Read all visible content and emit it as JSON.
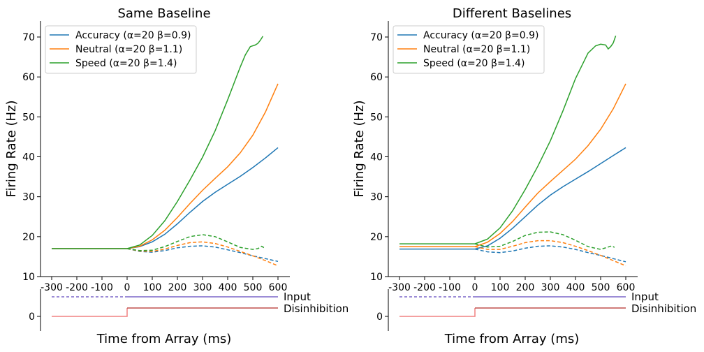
{
  "chart_data": [
    {
      "type": "line",
      "title": "Same Baseline",
      "xlabel": "Time from Array (ms)",
      "ylabel": "Firing Rate (Hz)",
      "xlim": [
        -350,
        640
      ],
      "ylim": [
        10,
        74
      ],
      "xticks": [
        -300,
        -200,
        -100,
        0,
        100,
        200,
        300,
        400,
        500,
        600
      ],
      "xtick_labels": [
        "-300",
        "-200",
        "-100",
        "0",
        "100",
        "200",
        "300",
        "400",
        "500",
        "600"
      ],
      "yticks": [
        10,
        20,
        30,
        40,
        50,
        60,
        70
      ],
      "ytick_labels": [
        "10",
        "20",
        "30",
        "40",
        "50",
        "60",
        "70"
      ],
      "legend_position": "top-left",
      "grid": false,
      "series": [
        {
          "name": "Accuracy (α=20 β=0.9)",
          "color": "#1f77b4",
          "style": "solid",
          "x": [
            -300,
            0,
            50,
            100,
            150,
            200,
            250,
            300,
            350,
            400,
            450,
            500,
            550,
            600
          ],
          "y": [
            17,
            17,
            17.5,
            18.7,
            20.6,
            23.2,
            26.1,
            28.8,
            31.1,
            33.1,
            35.1,
            37.3,
            39.7,
            42.3
          ]
        },
        {
          "name": "Neutral (α=20 β=1.1)",
          "color": "#ff7f0e",
          "style": "solid",
          "x": [
            -300,
            0,
            50,
            100,
            150,
            200,
            250,
            300,
            350,
            400,
            450,
            500,
            550,
            600
          ],
          "y": [
            17,
            17,
            17.6,
            19.2,
            21.6,
            24.8,
            28.3,
            31.6,
            34.6,
            37.5,
            41,
            45.4,
            51.2,
            58.3
          ]
        },
        {
          "name": "Speed (α=20 β=1.4)",
          "color": "#2ca02c",
          "style": "solid",
          "x": [
            -300,
            0,
            50,
            100,
            150,
            200,
            250,
            300,
            350,
            400,
            450,
            470,
            490,
            510,
            520,
            530,
            540
          ],
          "y": [
            17,
            17,
            17.9,
            20.3,
            24,
            28.8,
            34.2,
            39.9,
            46.5,
            54.3,
            62.5,
            65.5,
            67.6,
            68,
            68.4,
            69.2,
            70.2
          ]
        },
        {
          "name": "",
          "color": "#1f77b4",
          "style": "dashed",
          "x": [
            0,
            50,
            100,
            150,
            200,
            250,
            300,
            350,
            400,
            450,
            500,
            550,
            600
          ],
          "y": [
            17,
            16.3,
            16.1,
            16.5,
            17.2,
            17.6,
            17.7,
            17.4,
            16.7,
            16.0,
            15.2,
            14.5,
            13.8
          ]
        },
        {
          "name": "",
          "color": "#ff7f0e",
          "style": "dashed",
          "x": [
            0,
            50,
            100,
            150,
            200,
            250,
            300,
            350,
            400,
            450,
            500,
            550,
            600
          ],
          "y": [
            17,
            16.4,
            16.3,
            16.9,
            17.8,
            18.5,
            18.7,
            18.3,
            17.4,
            16.3,
            15.2,
            14,
            12.7
          ]
        },
        {
          "name": "",
          "color": "#2ca02c",
          "style": "dashed",
          "x": [
            0,
            50,
            100,
            150,
            200,
            250,
            300,
            350,
            400,
            450,
            500,
            520,
            535,
            545
          ],
          "y": [
            17,
            16.5,
            16.6,
            17.5,
            18.8,
            20.0,
            20.5,
            20.0,
            18.7,
            17.3,
            16.8,
            17.0,
            17.6,
            17.2
          ]
        }
      ],
      "inputs": [
        {
          "label": "Input",
          "color": "#7b66c9",
          "pre_style": "dashed",
          "level": 5,
          "baseline": 5
        },
        {
          "label": "Disinhibition",
          "color": "#c0504d",
          "pre_color": "#f08080",
          "level": 2,
          "baseline": 0
        }
      ],
      "input_ytick_labels": [
        "0"
      ]
    },
    {
      "type": "line",
      "title": "Different Baselines",
      "xlabel": "Time from Array (ms)",
      "ylabel": "Firing Rate (Hz)",
      "xlim": [
        -350,
        640
      ],
      "ylim": [
        10,
        74
      ],
      "xticks": [
        -300,
        -200,
        -100,
        0,
        100,
        200,
        300,
        400,
        500,
        600
      ],
      "xtick_labels": [
        "-300",
        "-200",
        "-100",
        "0",
        "100",
        "200",
        "300",
        "400",
        "500",
        "600"
      ],
      "yticks": [
        10,
        20,
        30,
        40,
        50,
        60,
        70
      ],
      "ytick_labels": [
        "10",
        "20",
        "30",
        "40",
        "50",
        "60",
        "70"
      ],
      "legend_position": "top-left",
      "grid": false,
      "series": [
        {
          "name": "Accuracy (α=20 β=0.9)",
          "color": "#1f77b4",
          "style": "solid",
          "x": [
            -300,
            0,
            50,
            100,
            150,
            200,
            250,
            300,
            350,
            400,
            450,
            500,
            550,
            600
          ],
          "y": [
            16.9,
            16.9,
            17.7,
            19.6,
            22.1,
            25.0,
            27.9,
            30.4,
            32.5,
            34.4,
            36.3,
            38.3,
            40.3,
            42.3
          ]
        },
        {
          "name": "Neutral (α=20 β=1.1)",
          "color": "#ff7f0e",
          "style": "solid",
          "x": [
            -300,
            0,
            50,
            100,
            150,
            200,
            250,
            300,
            350,
            400,
            450,
            500,
            550,
            600
          ],
          "y": [
            17.5,
            17.5,
            18.6,
            20.8,
            23.8,
            27.4,
            30.9,
            33.8,
            36.6,
            39.4,
            42.8,
            46.9,
            52,
            58.3
          ]
        },
        {
          "name": "Speed (α=20 β=1.4)",
          "color": "#2ca02c",
          "style": "solid",
          "x": [
            -300,
            0,
            50,
            100,
            150,
            200,
            250,
            300,
            350,
            400,
            450,
            480,
            500,
            520,
            530,
            540,
            550,
            560
          ],
          "y": [
            18.2,
            18.2,
            19.4,
            22.2,
            26.5,
            31.8,
            37.6,
            44.0,
            51.5,
            59.6,
            66.0,
            67.8,
            68.2,
            68.0,
            67.0,
            67.6,
            68.5,
            70.3
          ]
        },
        {
          "name": "",
          "color": "#1f77b4",
          "style": "dashed",
          "x": [
            0,
            50,
            100,
            150,
            200,
            250,
            300,
            350,
            400,
            450,
            500,
            550,
            600
          ],
          "y": [
            16.9,
            16.2,
            16.0,
            16.4,
            17.1,
            17.6,
            17.7,
            17.4,
            16.8,
            16.0,
            15.3,
            14.5,
            13.7
          ]
        },
        {
          "name": "",
          "color": "#ff7f0e",
          "style": "dashed",
          "x": [
            0,
            50,
            100,
            150,
            200,
            250,
            300,
            350,
            400,
            450,
            500,
            550,
            600
          ],
          "y": [
            17.5,
            16.8,
            16.8,
            17.6,
            18.5,
            19.0,
            19.0,
            18.5,
            17.6,
            16.5,
            15.3,
            14.0,
            12.7
          ]
        },
        {
          "name": "",
          "color": "#2ca02c",
          "style": "dashed",
          "x": [
            0,
            50,
            100,
            150,
            200,
            250,
            300,
            350,
            400,
            450,
            500,
            530,
            545,
            555
          ],
          "y": [
            18.2,
            17.4,
            17.6,
            18.8,
            20.3,
            21.1,
            21.2,
            20.5,
            19.1,
            17.5,
            16.8,
            17.4,
            17.7,
            17.3
          ]
        }
      ],
      "inputs": [
        {
          "label": "Input",
          "color": "#7b66c9",
          "pre_style": "dashed",
          "level": 5,
          "baseline": 5
        },
        {
          "label": "Disinhibition",
          "color": "#c0504d",
          "pre_color": "#f08080",
          "level": 2,
          "baseline": 0
        }
      ],
      "input_ytick_labels": [
        "0"
      ]
    }
  ]
}
